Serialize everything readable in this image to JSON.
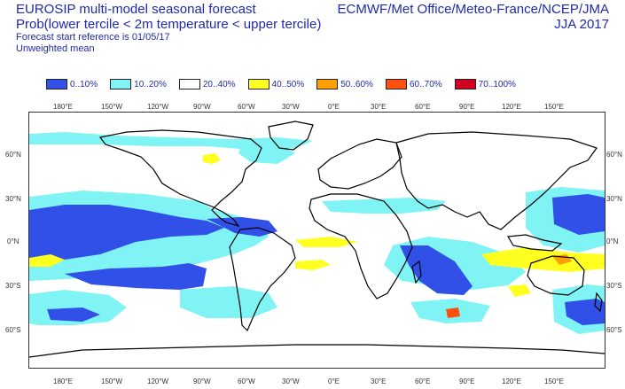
{
  "header": {
    "title": "EUROSIP multi-model seasonal forecast",
    "subtitle": "Prob(lower tercile < 2m temperature < upper tercile)",
    "reference": "Forecast start reference is 01/05/17",
    "weighting": "Unweighted mean",
    "centres": "ECMWF/Met Office/Meteo-France/NCEP/JMA",
    "season": "JJA 2017"
  },
  "legend": [
    {
      "label": "0..10%",
      "color": "#3050e8"
    },
    {
      "label": "10..20%",
      "color": "#80f4f4"
    },
    {
      "label": "20..40%",
      "color": "#ffffff"
    },
    {
      "label": "40..50%",
      "color": "#ffff20"
    },
    {
      "label": "50..60%",
      "color": "#ffa000"
    },
    {
      "label": "60..70%",
      "color": "#ff5010"
    },
    {
      "label": "70..100%",
      "color": "#d00020"
    }
  ],
  "lon_labels": [
    "180°E",
    "150°W",
    "120°W",
    "90°W",
    "60°W",
    "30°W",
    "0°E",
    "30°E",
    "60°E",
    "90°E",
    "120°E",
    "150°E"
  ],
  "lat_labels": [
    "60°N",
    "30°N",
    "0°N",
    "30°S",
    "60°S"
  ]
}
